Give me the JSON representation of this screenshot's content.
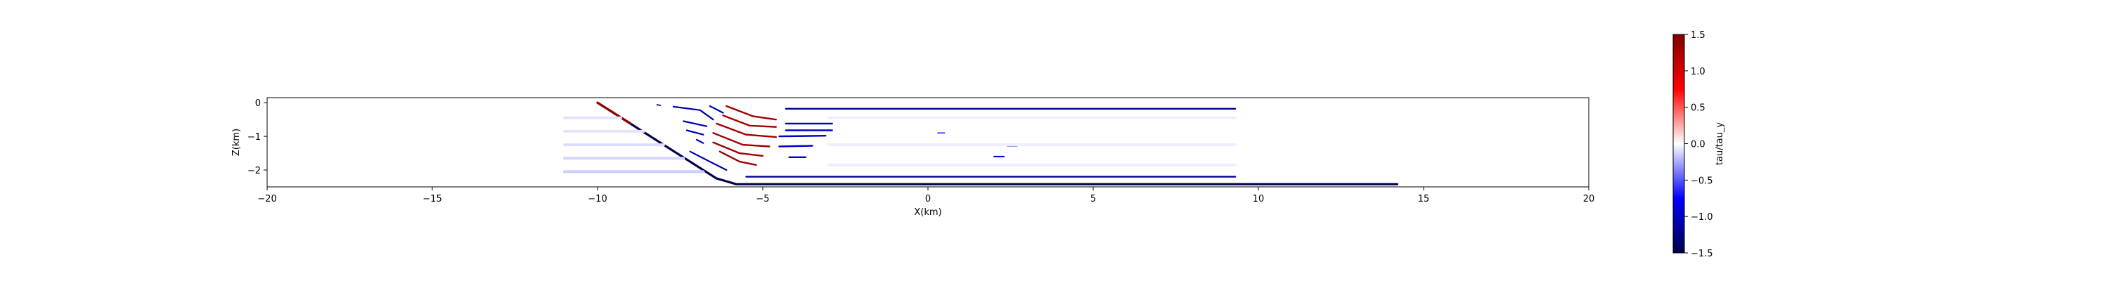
{
  "chart_data": {
    "type": "scatter",
    "xlabel": "X(km)",
    "ylabel": "Z(km)",
    "xlim": [
      -20,
      20
    ],
    "ylim": [
      -2.5,
      0.15
    ],
    "xticks": [
      -20,
      -15,
      -10,
      -5,
      0,
      5,
      10,
      15,
      20
    ],
    "xtick_labels": [
      "−20",
      "−15",
      "−10",
      "−5",
      "0",
      "5",
      "10",
      "15",
      "20"
    ],
    "yticks": [
      0,
      -1,
      -2
    ],
    "ytick_labels": [
      "0",
      "−1",
      "−2"
    ],
    "colorbar": {
      "label": "tau/tau_y",
      "range": [
        -1.5,
        1.5
      ],
      "ticks": [
        1.5,
        1.0,
        0.5,
        0.0,
        -0.5,
        -1.0,
        -1.5
      ],
      "tick_labels": [
        "1.5",
        "1.0",
        "0.5",
        "0.0",
        "−0.5",
        "−1.0",
        "−1.5"
      ],
      "colormap": "seismic",
      "colors": [
        "#00004c",
        "#0000ff",
        "#ffffff",
        "#ff0000",
        "#7f0000"
      ]
    },
    "grid": false,
    "series": [
      {
        "kind": "line",
        "value": -1.5,
        "width": 3.2,
        "points": [
          [
            -10,
            0
          ],
          [
            -6.4,
            -2.25
          ],
          [
            -5.8,
            -2.42
          ],
          [
            14.2,
            -2.42
          ]
        ]
      },
      {
        "kind": "line",
        "value": 1.4,
        "width": 3.2,
        "points": [
          [
            -10,
            0
          ],
          [
            -9.0,
            -0.62
          ]
        ]
      },
      {
        "kind": "line",
        "value": -1.2,
        "width": 2.4,
        "points": [
          [
            -4.3,
            -0.18
          ],
          [
            9.3,
            -0.18
          ]
        ]
      },
      {
        "kind": "line",
        "value": -1.2,
        "width": 2.4,
        "points": [
          [
            -5.5,
            -2.2
          ],
          [
            9.3,
            -2.2
          ]
        ]
      },
      {
        "kind": "line",
        "value": -1.0,
        "width": 2.4,
        "points": [
          [
            -4.3,
            -0.62
          ],
          [
            -2.9,
            -0.62
          ]
        ]
      },
      {
        "kind": "line",
        "value": -1.0,
        "width": 2.4,
        "points": [
          [
            -4.3,
            -0.82
          ],
          [
            -2.9,
            -0.82
          ]
        ]
      },
      {
        "kind": "line",
        "value": -1.0,
        "width": 2.4,
        "points": [
          [
            -4.5,
            -1.0
          ],
          [
            -3.1,
            -0.98
          ]
        ]
      },
      {
        "kind": "line",
        "value": -1.0,
        "width": 2.4,
        "points": [
          [
            -4.5,
            -1.3
          ],
          [
            -3.5,
            -1.28
          ]
        ]
      },
      {
        "kind": "line",
        "value": -1.0,
        "width": 2.4,
        "points": [
          [
            -4.2,
            -1.62
          ],
          [
            -3.7,
            -1.62
          ]
        ]
      },
      {
        "kind": "line",
        "value": -1.1,
        "width": 2.2,
        "points": [
          [
            -7.7,
            -0.12
          ],
          [
            -6.9,
            -0.22
          ],
          [
            -6.5,
            -0.5
          ]
        ]
      },
      {
        "kind": "line",
        "value": -1.1,
        "width": 2.2,
        "points": [
          [
            -6.6,
            -0.1
          ],
          [
            -6.2,
            -0.3
          ]
        ]
      },
      {
        "kind": "line",
        "value": -1.1,
        "width": 2.2,
        "points": [
          [
            -7.4,
            -0.55
          ],
          [
            -6.7,
            -0.7
          ]
        ]
      },
      {
        "kind": "line",
        "value": -1.1,
        "width": 2.2,
        "points": [
          [
            -7.3,
            -0.82
          ],
          [
            -6.8,
            -0.95
          ]
        ]
      },
      {
        "kind": "line",
        "value": -1.1,
        "width": 2.2,
        "points": [
          [
            -7.0,
            -1.1
          ],
          [
            -6.8,
            -1.2
          ]
        ]
      },
      {
        "kind": "line",
        "value": -1.1,
        "width": 2.2,
        "points": [
          [
            -7.2,
            -1.45
          ],
          [
            -6.6,
            -1.75
          ],
          [
            -6.1,
            -2.0
          ]
        ]
      },
      {
        "kind": "line",
        "value": -1.2,
        "width": 1.8,
        "points": [
          [
            -8.2,
            -0.06
          ],
          [
            -8.1,
            -0.08
          ]
        ]
      },
      {
        "kind": "line",
        "value": 1.3,
        "width": 2.4,
        "points": [
          [
            -6.1,
            -0.1
          ],
          [
            -5.3,
            -0.4
          ],
          [
            -4.6,
            -0.5
          ]
        ]
      },
      {
        "kind": "line",
        "value": 1.3,
        "width": 2.4,
        "points": [
          [
            -6.2,
            -0.38
          ],
          [
            -5.4,
            -0.68
          ],
          [
            -4.6,
            -0.72
          ]
        ]
      },
      {
        "kind": "line",
        "value": 1.3,
        "width": 2.4,
        "points": [
          [
            -6.4,
            -0.62
          ],
          [
            -5.5,
            -0.95
          ],
          [
            -4.6,
            -1.02
          ]
        ]
      },
      {
        "kind": "line",
        "value": 1.3,
        "width": 2.4,
        "points": [
          [
            -6.5,
            -0.9
          ],
          [
            -5.6,
            -1.25
          ],
          [
            -4.8,
            -1.3
          ]
        ]
      },
      {
        "kind": "line",
        "value": 1.3,
        "width": 2.4,
        "points": [
          [
            -6.5,
            -1.18
          ],
          [
            -5.7,
            -1.5
          ],
          [
            -5.0,
            -1.58
          ]
        ]
      },
      {
        "kind": "line",
        "value": 1.3,
        "width": 2.4,
        "points": [
          [
            -6.3,
            -1.45
          ],
          [
            -5.7,
            -1.75
          ],
          [
            -5.2,
            -1.85
          ]
        ]
      },
      {
        "kind": "line",
        "value": -0.5,
        "width": 2.0,
        "points": [
          [
            0.3,
            -0.9
          ],
          [
            0.5,
            -0.9
          ]
        ]
      },
      {
        "kind": "line",
        "value": -0.8,
        "width": 2.0,
        "points": [
          [
            2.4,
            -1.28
          ],
          [
            2.7,
            -1.28
          ]
        ]
      },
      {
        "kind": "line",
        "value": -0.9,
        "width": 2.0,
        "points": [
          [
            2.0,
            -1.6
          ],
          [
            2.3,
            -1.6
          ]
        ]
      },
      {
        "kind": "line",
        "value": -0.08,
        "width": 4.0,
        "points": [
          [
            -11,
            -0.45
          ],
          [
            -9.3,
            -0.45
          ]
        ]
      },
      {
        "kind": "line",
        "value": -0.08,
        "width": 4.0,
        "points": [
          [
            -11,
            -0.85
          ],
          [
            -8.6,
            -0.85
          ]
        ]
      },
      {
        "kind": "line",
        "value": -0.1,
        "width": 4.0,
        "points": [
          [
            -11,
            -1.25
          ],
          [
            -8.0,
            -1.25
          ]
        ]
      },
      {
        "kind": "line",
        "value": -0.12,
        "width": 4.0,
        "points": [
          [
            -11,
            -1.65
          ],
          [
            -7.4,
            -1.65
          ]
        ]
      },
      {
        "kind": "line",
        "value": -0.15,
        "width": 4.0,
        "points": [
          [
            -11,
            -2.05
          ],
          [
            -6.8,
            -2.05
          ]
        ]
      },
      {
        "kind": "line",
        "value": -0.05,
        "width": 4.0,
        "points": [
          [
            -3,
            -0.45
          ],
          [
            9.3,
            -0.45
          ]
        ]
      },
      {
        "kind": "line",
        "value": -0.05,
        "width": 4.0,
        "points": [
          [
            -3,
            -1.25
          ],
          [
            9.3,
            -1.25
          ]
        ]
      },
      {
        "kind": "line",
        "value": -0.05,
        "width": 4.0,
        "points": [
          [
            -3,
            -1.85
          ],
          [
            9.3,
            -1.85
          ]
        ]
      }
    ]
  }
}
